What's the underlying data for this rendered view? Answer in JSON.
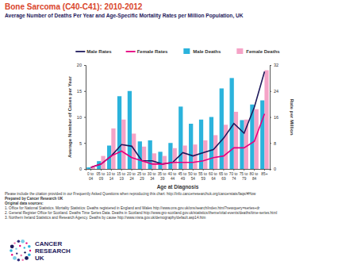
{
  "chart_data": {
    "type": "bar",
    "title": "Bone Sarcoma (C40-C41): 2010-2012",
    "subtitle": "Average Number of Deaths Per Year and Age-Specific Mortality Rates per Million Population, UK",
    "x_label": "Age at Diagnosis",
    "y_label": "Average Number of Cases per Year",
    "y2_label": "Rate per Million",
    "categories": [
      "0 to 04",
      "05 to 09",
      "10 to 14",
      "15 to 19",
      "20 to 24",
      "25 to 29",
      "30 to 34",
      "35 to 39",
      "40 to 44",
      "45 to 49",
      "50 to 54",
      "55 to 59",
      "60 to 64",
      "65 to 69",
      "70 to 74",
      "75 to 79",
      "80 to 84",
      "85+"
    ],
    "series": [
      {
        "name": "Male Rates",
        "type": "line",
        "axis": "y2",
        "color": "#1f1a5c",
        "values": [
          0.5,
          1.5,
          4,
          7.5,
          7,
          2.5,
          2.5,
          1.5,
          2,
          5,
          4,
          5,
          6,
          9.5,
          14,
          11,
          19,
          30
        ]
      },
      {
        "name": "Female Rates",
        "type": "line",
        "axis": "y2",
        "color": "#e6007e",
        "values": [
          0.5,
          1.5,
          4,
          5.5,
          3.5,
          2.5,
          1.5,
          1.5,
          2,
          2,
          2,
          2.5,
          3.5,
          4,
          6.5,
          6.5,
          8.5,
          17
        ]
      },
      {
        "name": "Male Deaths",
        "type": "bar",
        "color": "#2bb3dc",
        "values": [
          0.3,
          1.5,
          4.5,
          14,
          15,
          5.3,
          5.5,
          3.3,
          5,
          12,
          8.7,
          9.5,
          10,
          15.5,
          17.5,
          9.4,
          12.4,
          13.2
        ]
      },
      {
        "name": "Female Deaths",
        "type": "bar",
        "color": "#f5a3c7",
        "values": [
          0.3,
          2.5,
          7.8,
          9.5,
          6.8,
          4.3,
          3,
          2.5,
          4,
          4.5,
          4.7,
          5.5,
          6.5,
          8.5,
          11,
          9.5,
          11.5,
          19
        ]
      }
    ],
    "ylim": [
      0,
      20
    ],
    "yticks": [
      0,
      5,
      10,
      15,
      20
    ],
    "y2lim": [
      0,
      32
    ],
    "y2ticks": [
      0,
      8,
      16,
      24,
      32
    ],
    "grid": false,
    "legend": "top"
  },
  "footer": [
    "Please include the citation provided in our Frequently Asked Questions when reproducing this chart: http://info.cancerresearchuk.org/cancerstats/faqs/#How",
    "Prepared by Cancer Research UK",
    "Original data sources:",
    "1. Office for National Statistics. Mortality Statistics: Deaths registered in England and Wales http://www.ons.gov.uk/ons/search/index.html?newquery=series+dr",
    "2. General Register Office for Scotland. Deaths Time Series Data. Deaths in Scotland http://www.gro-scotland.gov.uk/statistics/theme/vital-events/deaths/time-series.html",
    "3. Northern Ireland Statistics and Research Agency. Deaths by cause http://www.nisra.gov.uk/demography/default.asp14.htm"
  ],
  "logo": [
    "CANCER",
    "RESEARCH",
    "UK"
  ]
}
